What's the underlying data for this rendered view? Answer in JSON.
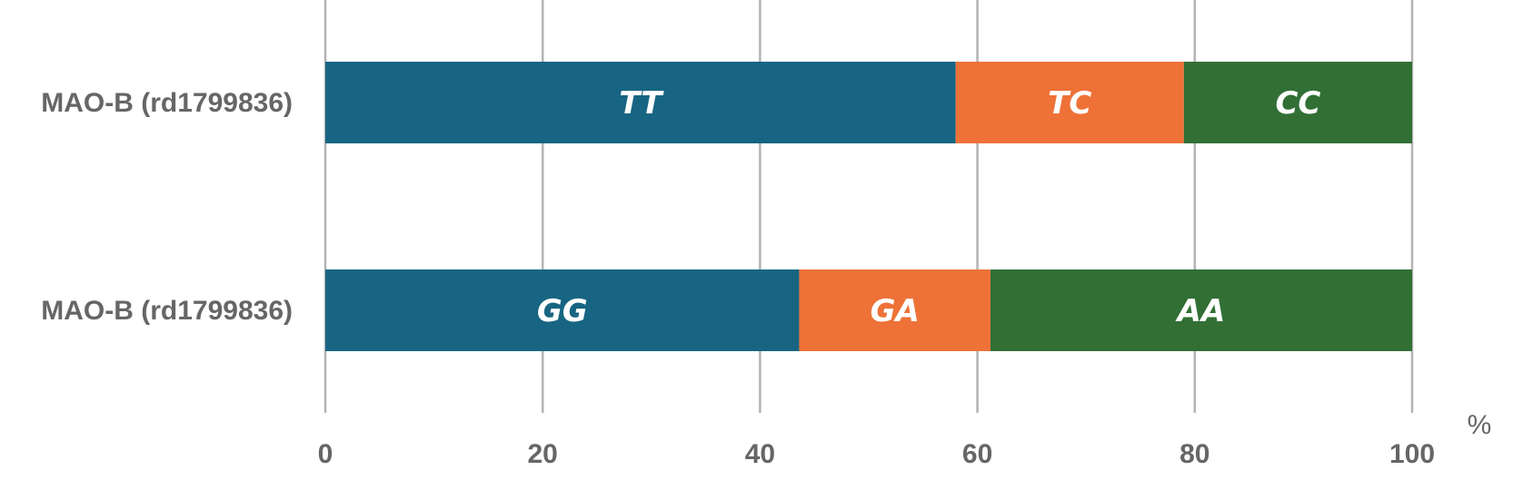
{
  "chart_data": {
    "type": "bar",
    "orientation": "horizontal",
    "stacked": true,
    "title": "",
    "xlabel": "",
    "ylabel": "",
    "x_unit": "%",
    "xlim": [
      0,
      100
    ],
    "x_ticks": [
      0,
      20,
      40,
      60,
      80,
      100
    ],
    "grid": "vertical",
    "legend": "none",
    "categories": [
      "MAO-B (rd1799836)",
      "MAO-B (rd1799836)"
    ],
    "rows": [
      {
        "category": "MAO-B (rd1799836)",
        "segments": [
          {
            "label": "TT",
            "value": 58,
            "color": "#176582"
          },
          {
            "label": "TC",
            "value": 21,
            "color": "#ee7238"
          },
          {
            "label": "CC",
            "value": 21,
            "color": "#316f35"
          }
        ]
      },
      {
        "category": "MAO-B (rd1799836)",
        "segments": [
          {
            "label": "GG",
            "value": 43.6,
            "color": "#176582"
          },
          {
            "label": "GA",
            "value": 17.6,
            "color": "#ee7238"
          },
          {
            "label": "AA",
            "value": 38.8,
            "color": "#316f35"
          }
        ]
      }
    ]
  }
}
